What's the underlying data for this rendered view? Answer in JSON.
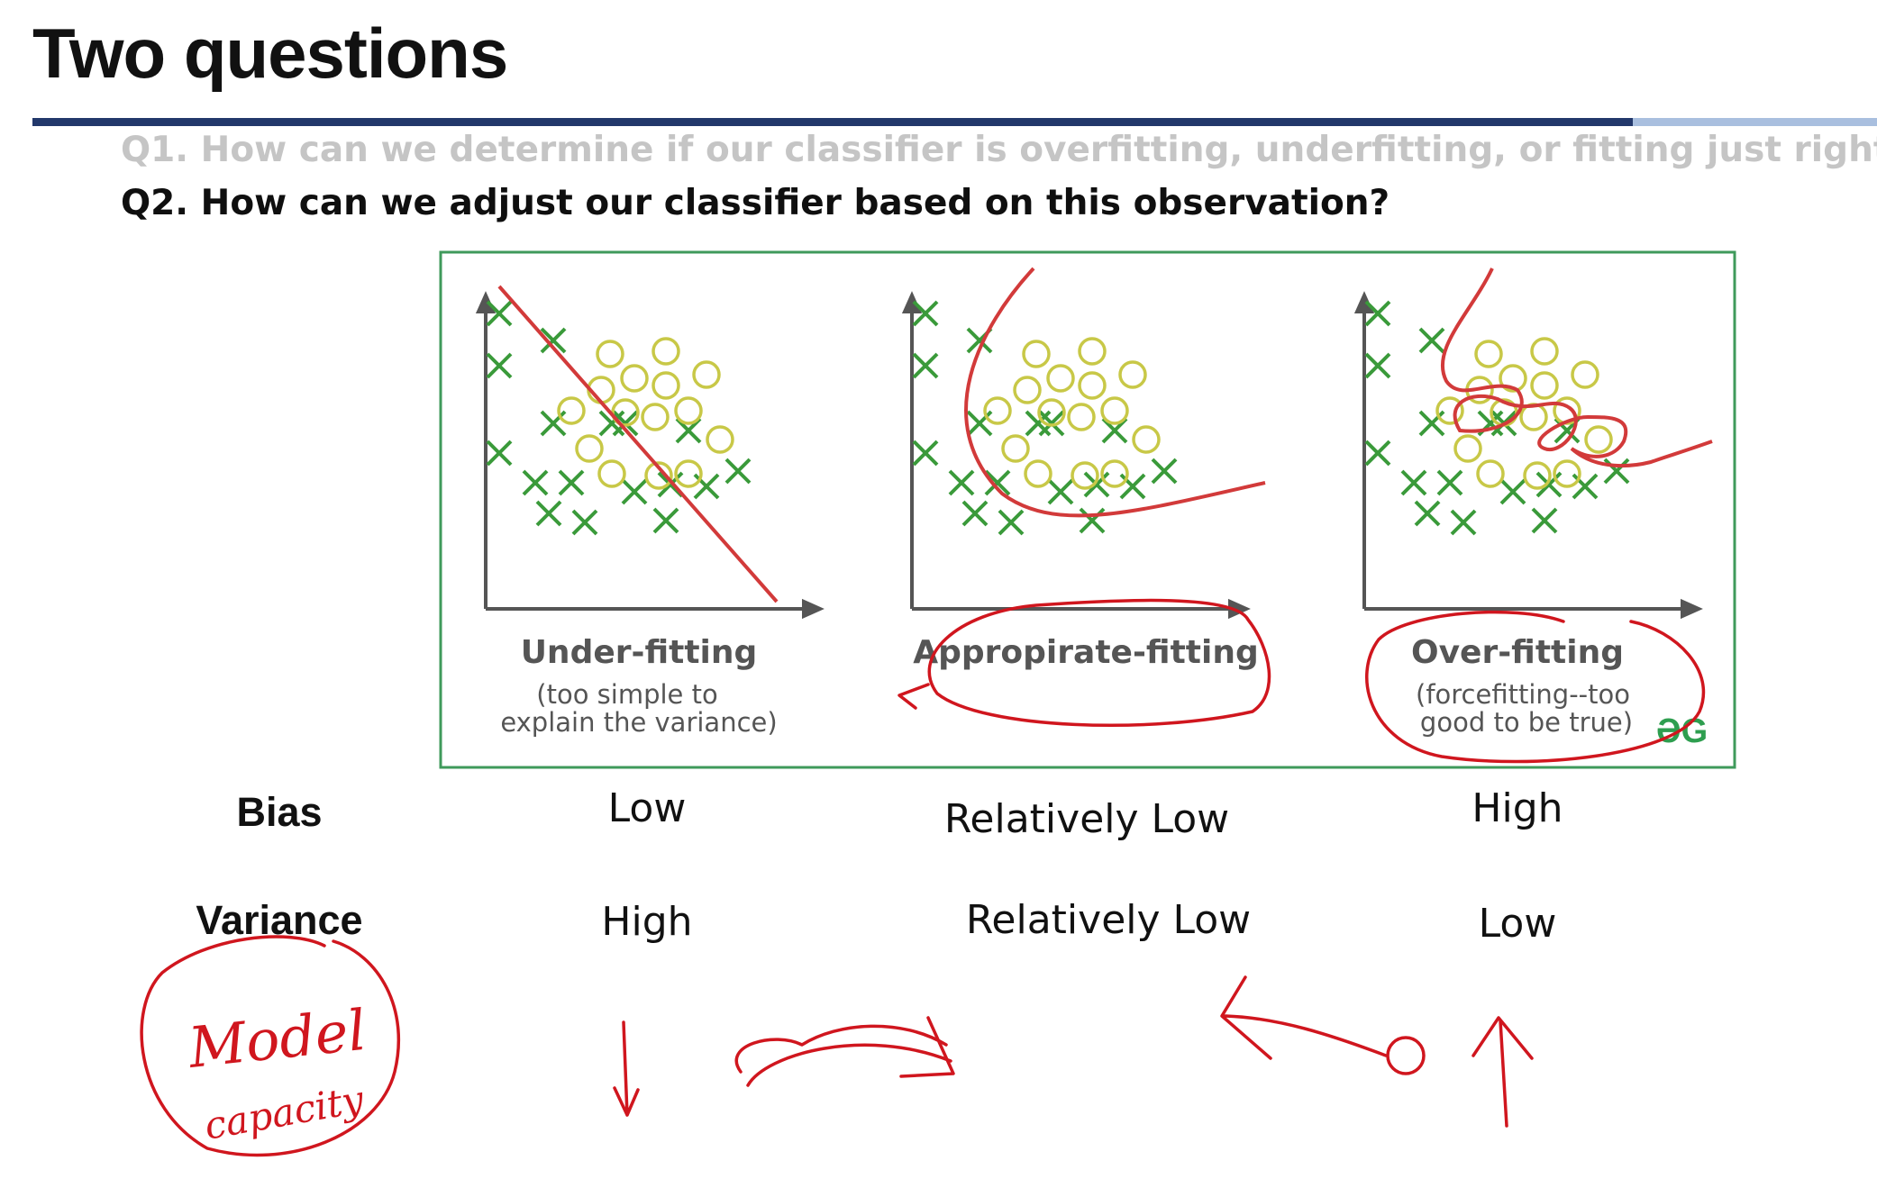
{
  "title": "Two questions",
  "colors": {
    "accent_dark": "#22386b",
    "accent_light": "#a9bfdf",
    "ink": "#d0161e",
    "cross": "#3a9a3a",
    "circle": "#c8c847",
    "boundary": "#d23a3a",
    "frame": "#3f9a5b"
  },
  "questions": {
    "q1": "Q1. How can we determine if our classifier is overfitting, underfitting, or fitting just right",
    "q2": "Q2. How can we adjust our classifier based on this observation?"
  },
  "figure": {
    "panels": [
      {
        "title": "Under-fitting",
        "subtitle_line1": "(too simple to",
        "subtitle_line2": "explain the variance)"
      },
      {
        "title": "Appropirate-fitting",
        "subtitle_line1": "",
        "subtitle_line2": ""
      },
      {
        "title": "Over-fitting",
        "subtitle_line1": "(forcefitting--too",
        "subtitle_line2": "good to be true)"
      }
    ],
    "logo_text": "ƏG"
  },
  "table": {
    "bias_label": "Bias",
    "variance_label": "Variance",
    "bias": [
      "Low",
      "Relatively Low",
      "High"
    ],
    "variance": [
      "High",
      "Relatively Low",
      "Low"
    ]
  },
  "annotations": {
    "handwritten_line1": "Model",
    "handwritten_line2": "capacity"
  }
}
